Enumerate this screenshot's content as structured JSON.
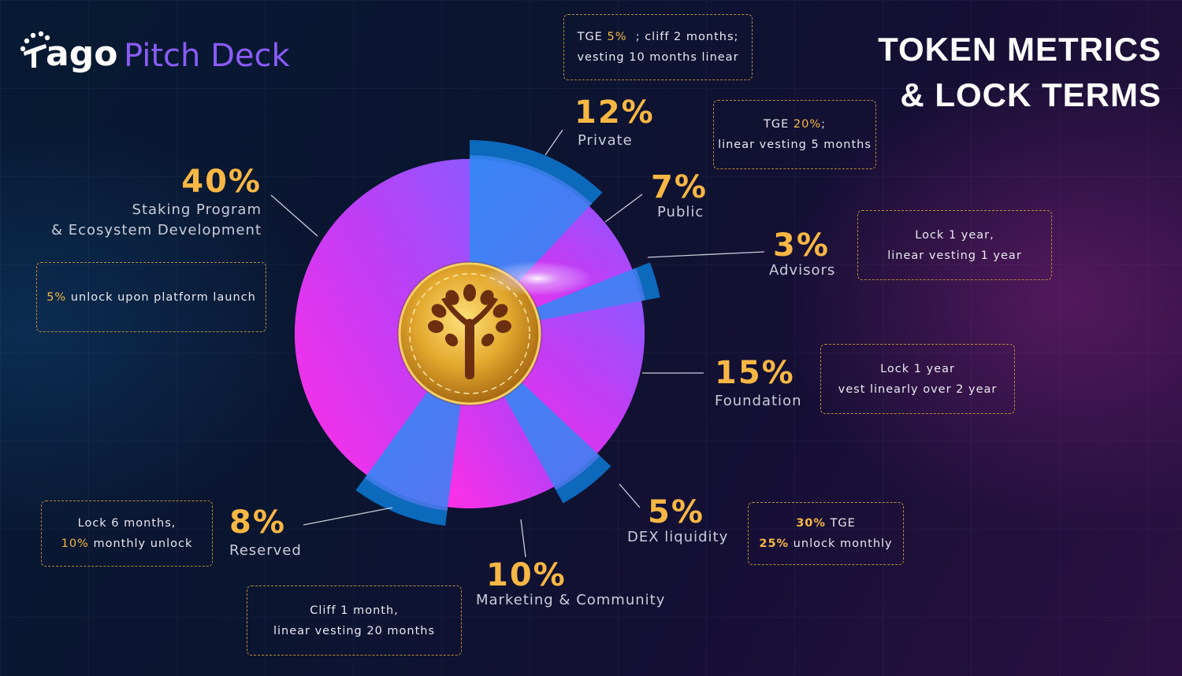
{
  "brand": {
    "logo_text": "ago",
    "deck_title": "Pitch Deck"
  },
  "page_title": {
    "line1": "TOKEN METRICS",
    "line2": "& LOCK TERMS"
  },
  "colors": {
    "accent": "#f7b744",
    "slice_a": "#ff2fe6",
    "slice_b": "#b24dff",
    "band": "#2f8af7",
    "outer_band": "#0d6fc4",
    "coin": "#e3a92e"
  },
  "chart_data": {
    "type": "pie",
    "title": "TOKEN METRICS & LOCK TERMS",
    "slices": [
      {
        "label": "Private",
        "value": 12,
        "display": "12%",
        "highlight": true
      },
      {
        "label": "Public",
        "value": 7,
        "display": "7%",
        "highlight": false
      },
      {
        "label": "Advisors",
        "value": 3,
        "display": "3%",
        "highlight": true
      },
      {
        "label": "Foundation",
        "value": 15,
        "display": "15%",
        "highlight": false
      },
      {
        "label": "DEX liquidity",
        "value": 5,
        "display": "5%",
        "highlight": true
      },
      {
        "label": "Marketing & Community",
        "value": 10,
        "display": "10%",
        "highlight": false
      },
      {
        "label": "Reserved",
        "value": 8,
        "display": "8%",
        "highlight": true
      },
      {
        "label": "Staking Program & Ecosystem Development",
        "value": 40,
        "display": "40%",
        "highlight": false
      }
    ]
  },
  "labels": {
    "private": {
      "pct": "12%",
      "name": "Private"
    },
    "public": {
      "pct": "7%",
      "name": "Public"
    },
    "advisors": {
      "pct": "3%",
      "name": "Advisors"
    },
    "foundation": {
      "pct": "15%",
      "name": "Foundation"
    },
    "dex": {
      "pct": "5%",
      "name": "DEX liquidity"
    },
    "marketing": {
      "pct": "10%",
      "name": "Marketing & Community"
    },
    "reserved": {
      "pct": "8%",
      "name": "Reserved"
    },
    "staking": {
      "pct": "40%",
      "name_line1": "Staking Program",
      "name_line2": "& Ecosystem Development"
    }
  },
  "notes": {
    "private": {
      "l1_pre": "TGE ",
      "l1_hl": "5%",
      "l1_post": "  ; cliff 2 months;",
      "l2": "vesting 10 months linear"
    },
    "public": {
      "l1_pre": "TGE ",
      "l1_hl": "20%",
      "l1_post": ";",
      "l2": "linear vesting 5 months"
    },
    "advisors": {
      "l1": "Lock 1 year,",
      "l2": "linear vesting 1 year"
    },
    "foundation": {
      "l1": "Lock 1 year",
      "l2": "vest linearly over 2 year"
    },
    "dex": {
      "l1_hl": "30%",
      "l1_post": " TGE",
      "l2_hl": "25%",
      "l2_post": " unlock monthly"
    },
    "marketing": {
      "l1": "Cliff 1 month,",
      "l2": "linear vesting 20 months"
    },
    "reserved": {
      "l1": "Lock 6 months,",
      "l2_hl": "10%",
      "l2_post": " monthly unlock"
    },
    "staking": {
      "l1_hl": "5%",
      "l1_post": " unlock upon platform launch"
    }
  }
}
